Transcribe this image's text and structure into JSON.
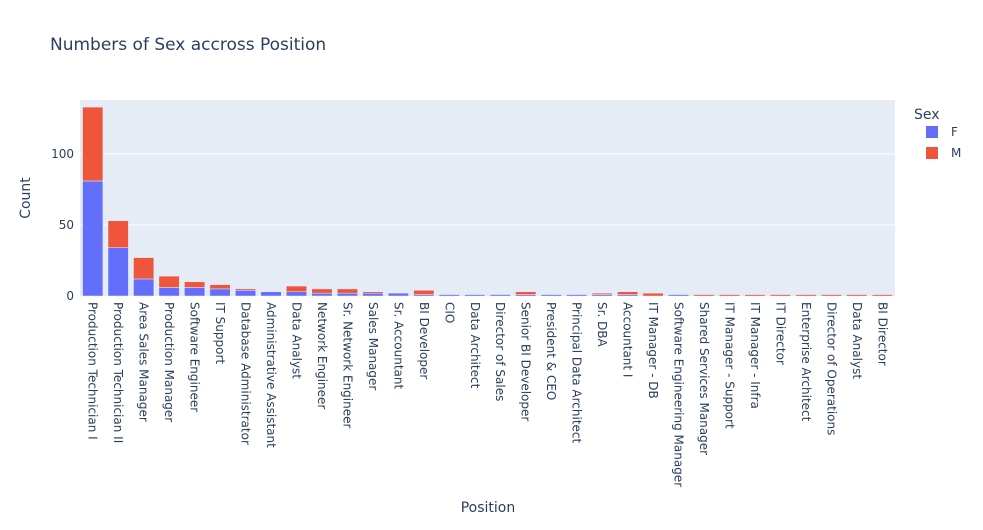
{
  "chart_data": {
    "type": "bar",
    "barmode": "stack",
    "title": "Numbers of Sex accross Position",
    "xlabel": "Position",
    "ylabel": "Count",
    "ylim": [
      0,
      138
    ],
    "yticks": [
      0,
      50,
      100
    ],
    "grid": true,
    "legend": {
      "title": "Sex",
      "placement": "top-right"
    },
    "colors": {
      "F": "#636efa",
      "M": "#ef553b",
      "plot_bg": "#e5ecf6",
      "grid": "#ffffff",
      "text": "#2a3f5f"
    },
    "categories": [
      "Production Technician I",
      "Production Technician II",
      "Area Sales Manager",
      "Production Manager",
      "Software Engineer",
      "IT Support",
      "Database Administrator",
      "Administrative Assistant",
      "Data Analyst",
      "Network Engineer",
      "Sr. Network Engineer",
      "Sales Manager",
      "Sr. Accountant",
      "BI Developer",
      "CIO",
      "Data Architect",
      "Director of Sales",
      "Senior BI Developer",
      "President & CEO",
      "Principal Data Architect",
      "Sr. DBA",
      "Accountant I",
      "IT Manager - DB",
      "Software Engineering Manager",
      "Shared Services Manager",
      "IT Manager - Support",
      "IT Manager - Infra",
      "IT Director",
      "Enterprise Architect",
      "Director of Operations",
      "Data Analyst ",
      "BI Director"
    ],
    "series": [
      {
        "name": "F",
        "values": [
          81,
          34,
          12,
          6,
          6,
          5,
          4,
          3,
          3,
          2,
          2,
          2,
          2,
          1,
          1,
          1,
          1,
          1,
          1,
          1,
          1,
          1,
          0,
          1,
          0,
          0,
          0,
          0,
          0,
          0,
          0,
          0
        ]
      },
      {
        "name": "M",
        "values": [
          52,
          19,
          15,
          8,
          4,
          3,
          1,
          0,
          4,
          3,
          3,
          1,
          0,
          3,
          0,
          0,
          0,
          2,
          0,
          0,
          1,
          2,
          2,
          0,
          1,
          1,
          1,
          1,
          1,
          1,
          1,
          1
        ]
      }
    ]
  }
}
